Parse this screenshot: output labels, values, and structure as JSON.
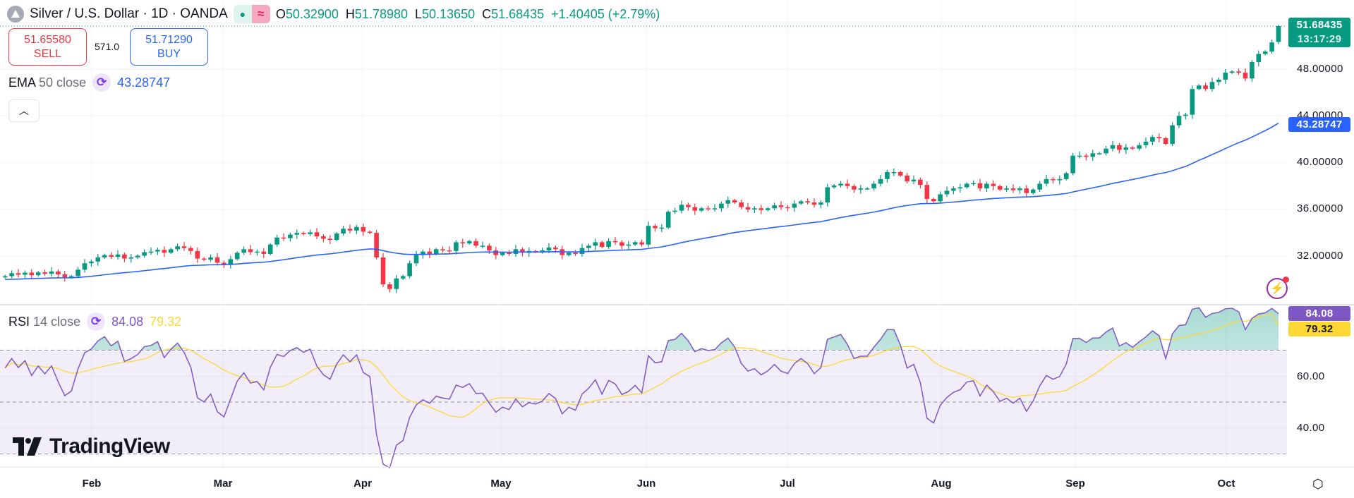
{
  "header": {
    "symbol_icon": "silver-coin-icon",
    "title": "Silver / U.S. Dollar · 1D · OANDA",
    "market_status_icon": "dot-icon",
    "data_icon": "wave-icon",
    "ohlc": {
      "o_label": "O",
      "o": "50.32900",
      "h_label": "H",
      "h": "51.78980",
      "l_label": "L",
      "l": "50.13650",
      "c_label": "C",
      "c": "51.68435",
      "change": "+1.40405 (+2.79%)"
    }
  },
  "trade": {
    "sell_price": "51.65580",
    "sell_label": "SELL",
    "spread": "571.0",
    "buy_price": "51.71290",
    "buy_label": "BUY"
  },
  "ema_legend": {
    "name": "EMA",
    "params": "50 close",
    "value": "43.28747"
  },
  "rsi_legend": {
    "name": "RSI",
    "params": "14 close",
    "value": "84.08",
    "ma_value": "79.32"
  },
  "price_axis": {
    "labels": [
      "48.00000",
      "44.00000",
      "40.00000",
      "36.00000",
      "32.00000"
    ],
    "last_price": "51.68435",
    "countdown": "13:17:29",
    "ema_tag": "43.28747"
  },
  "rsi_axis": {
    "labels": [
      "60.00",
      "40.00"
    ],
    "rsi_tag": "84.08",
    "ma_tag": "79.32"
  },
  "time_axis": {
    "labels": [
      "Feb",
      "Mar",
      "Apr",
      "May",
      "Jun",
      "Jul",
      "Aug",
      "Sep",
      "Oct"
    ]
  },
  "watermark": "TradingView",
  "colors": {
    "up": "#089981",
    "down": "#f23645",
    "ema": "#2962ff",
    "rsi": "#7e57c2",
    "rsi_ma": "#fdd835"
  },
  "chart_data": {
    "type": "candlestick",
    "timeframe": "1D",
    "ylim": [
      28.5,
      52
    ],
    "close": [
      30.3,
      30.55,
      30.42,
      30.6,
      30.38,
      30.62,
      30.5,
      30.7,
      30.45,
      30.2,
      30.3,
      30.85,
      31.4,
      31.55,
      31.9,
      32.1,
      31.95,
      32.15,
      31.8,
      31.9,
      32.05,
      32.35,
      32.4,
      32.55,
      32.3,
      32.6,
      32.85,
      32.7,
      32.45,
      31.8,
      31.7,
      31.9,
      31.45,
      31.3,
      31.75,
      32.3,
      32.6,
      32.35,
      32.4,
      32.2,
      33.0,
      33.6,
      33.55,
      33.85,
      34.0,
      33.9,
      34.05,
      33.7,
      33.5,
      33.4,
      33.95,
      34.35,
      34.2,
      34.5,
      34.1,
      34.0,
      31.9,
      29.6,
      29.2,
      30.1,
      30.3,
      31.4,
      32.1,
      32.4,
      32.2,
      32.6,
      32.5,
      32.45,
      33.2,
      33.1,
      33.3,
      32.9,
      32.9,
      32.5,
      32.1,
      32.3,
      32.2,
      32.6,
      32.3,
      32.45,
      32.4,
      32.5,
      32.75,
      32.6,
      32.1,
      32.3,
      32.2,
      32.7,
      32.9,
      33.2,
      32.8,
      33.3,
      33.2,
      32.9,
      33.0,
      33.2,
      33.0,
      34.6,
      34.4,
      34.45,
      35.8,
      35.9,
      36.4,
      36.2,
      35.9,
      36.1,
      36.05,
      36.1,
      36.5,
      36.8,
      36.6,
      36.2,
      36.0,
      36.1,
      35.95,
      36.1,
      36.35,
      36.2,
      36.15,
      36.5,
      36.7,
      36.6,
      36.4,
      36.6,
      37.9,
      38.05,
      38.2,
      38.0,
      37.7,
      37.8,
      37.8,
      38.2,
      38.6,
      39.2,
      39.2,
      38.9,
      38.4,
      38.55,
      38.1,
      36.9,
      36.7,
      37.3,
      37.6,
      37.8,
      37.9,
      38.2,
      38.25,
      37.8,
      38.2,
      38.0,
      37.7,
      37.8,
      37.65,
      37.8,
      37.4,
      37.7,
      38.2,
      38.6,
      38.5,
      38.6,
      39.1,
      40.6,
      40.6,
      40.5,
      40.8,
      40.8,
      41.2,
      41.5,
      41.1,
      41.3,
      41.2,
      41.5,
      41.8,
      42.2,
      42.1,
      41.6,
      43.2,
      44.0,
      44.1,
      46.3,
      46.6,
      46.3,
      46.9,
      47.1,
      47.7,
      47.8,
      47.7,
      47.2,
      48.6,
      49.3,
      49.5,
      50.28,
      51.68435
    ],
    "last_bar": {
      "open": 50.329,
      "high": 51.7898,
      "low": 50.1365,
      "close": 51.68435
    },
    "indicators": [
      {
        "name": "EMA 50 close",
        "last": 43.28747
      },
      {
        "name": "RSI 14 close",
        "last": 84.08,
        "ma_last": 79.32,
        "levels": [
          70,
          50,
          30
        ]
      }
    ]
  }
}
